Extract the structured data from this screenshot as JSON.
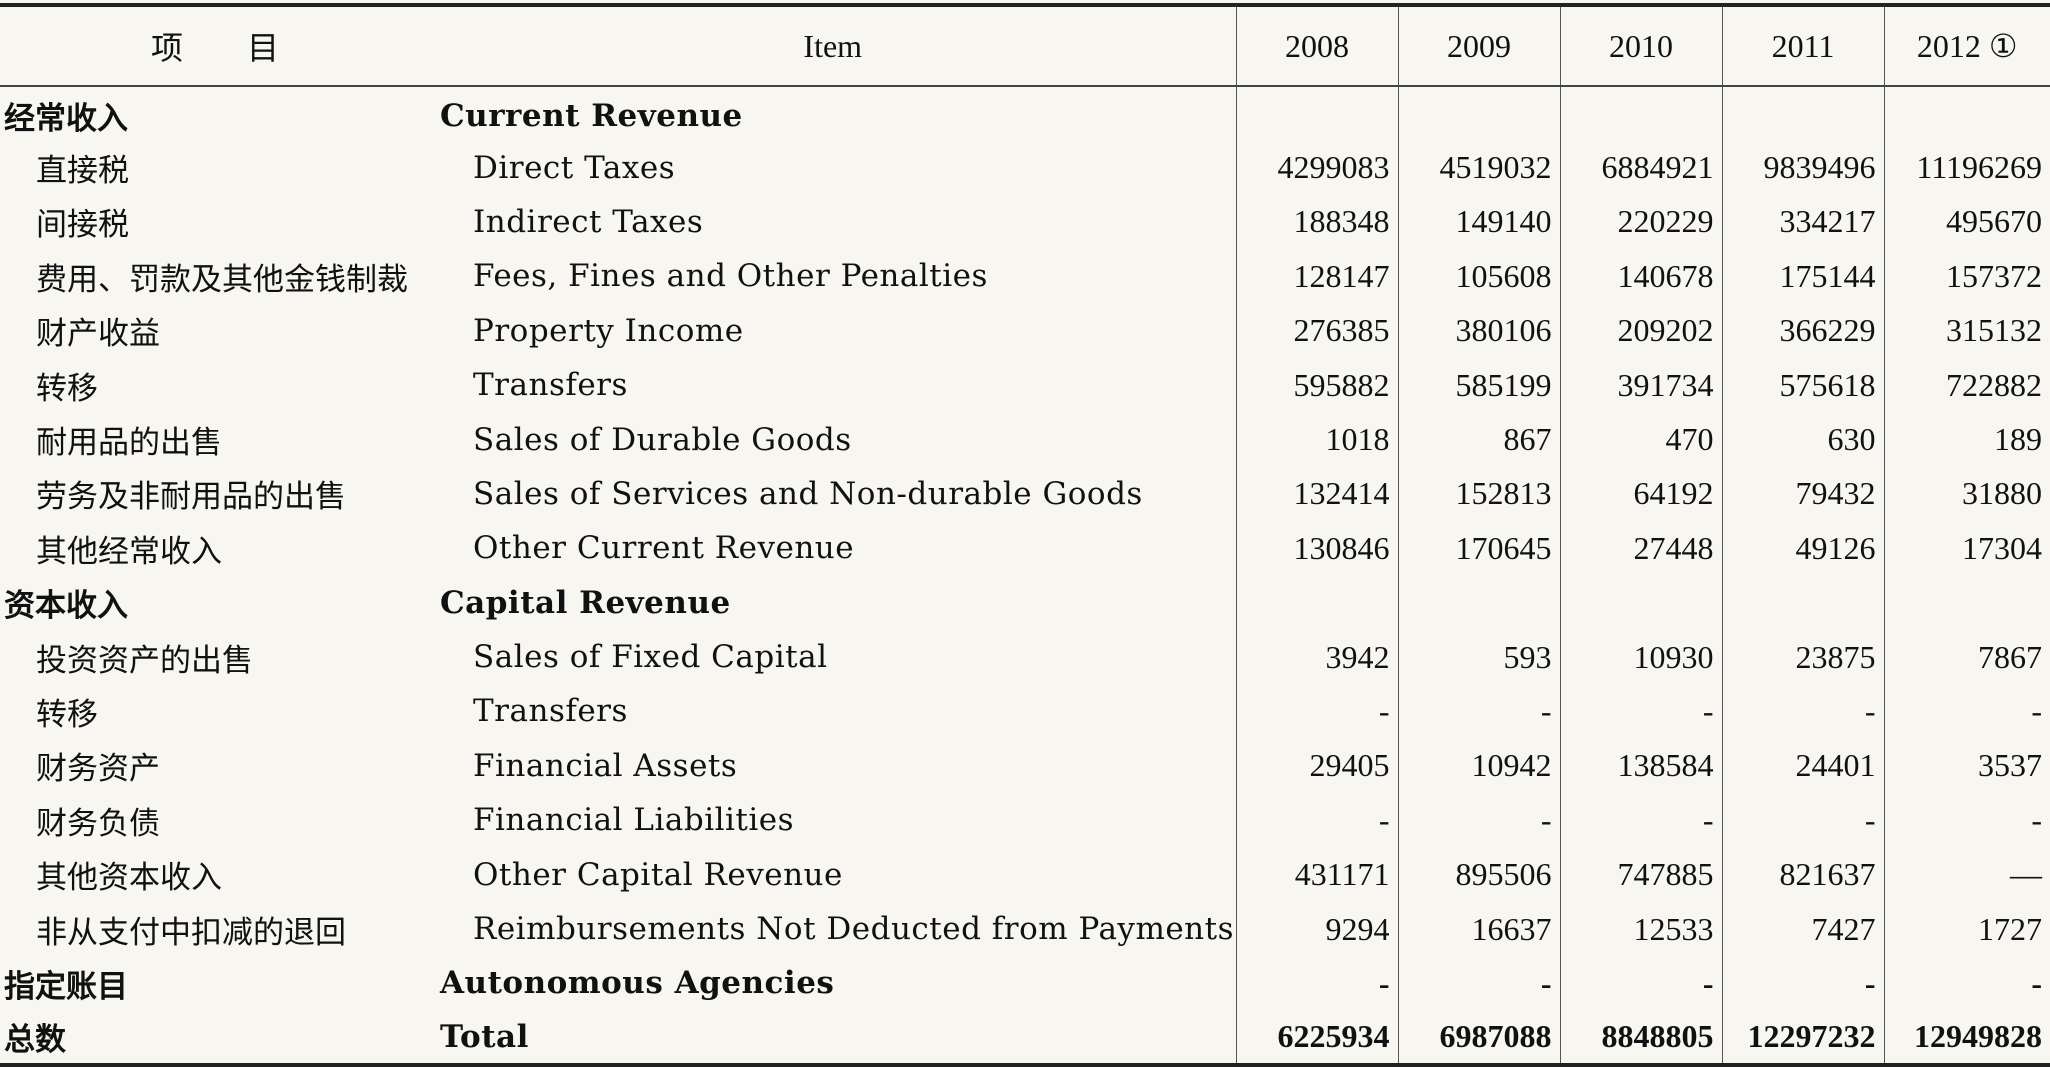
{
  "header": {
    "zh": "项　　目",
    "en": "Item",
    "years": [
      "2008",
      "2009",
      "2010",
      "2011",
      "2012 ①"
    ]
  },
  "rows": [
    {
      "zh": "经常收入",
      "en": "Current Revenue",
      "values": [
        "",
        "",
        "",
        "",
        ""
      ]
    },
    {
      "zh": "直接税",
      "en": "Direct Taxes",
      "values": [
        "4299083",
        "4519032",
        "6884921",
        "9839496",
        "11196269"
      ]
    },
    {
      "zh": "间接税",
      "en": "Indirect Taxes",
      "values": [
        "188348",
        "149140",
        "220229",
        "334217",
        "495670"
      ]
    },
    {
      "zh": "费用、罚款及其他金钱制裁",
      "en": "Fees, Fines and Other Penalties",
      "values": [
        "128147",
        "105608",
        "140678",
        "175144",
        "157372"
      ]
    },
    {
      "zh": "财产收益",
      "en": "Property Income",
      "values": [
        "276385",
        "380106",
        "209202",
        "366229",
        "315132"
      ]
    },
    {
      "zh": "转移",
      "en": "Transfers",
      "values": [
        "595882",
        "585199",
        "391734",
        "575618",
        "722882"
      ]
    },
    {
      "zh": "耐用品的出售",
      "en": "Sales of Durable Goods",
      "values": [
        "1018",
        "867",
        "470",
        "630",
        "189"
      ]
    },
    {
      "zh": "劳务及非耐用品的出售",
      "en": "Sales of Services and Non-durable Goods",
      "values": [
        "132414",
        "152813",
        "64192",
        "79432",
        "31880"
      ]
    },
    {
      "zh": "其他经常收入",
      "en": "Other Current Revenue",
      "values": [
        "130846",
        "170645",
        "27448",
        "49126",
        "17304"
      ]
    },
    {
      "zh": "资本收入",
      "en": "Capital Revenue",
      "values": [
        "",
        "",
        "",
        "",
        ""
      ]
    },
    {
      "zh": "投资资产的出售",
      "en": "Sales of Fixed Capital",
      "values": [
        "3942",
        "593",
        "10930",
        "23875",
        "7867"
      ]
    },
    {
      "zh": "转移",
      "en": "Transfers",
      "values": [
        "-",
        "-",
        "-",
        "-",
        "-"
      ]
    },
    {
      "zh": "财务资产",
      "en": "Financial Assets",
      "values": [
        "29405",
        "10942",
        "138584",
        "24401",
        "3537"
      ]
    },
    {
      "zh": "财务负债",
      "en": "Financial Liabilities",
      "values": [
        "-",
        "-",
        "-",
        "-",
        "-"
      ]
    },
    {
      "zh": "其他资本收入",
      "en": "Other Capital Revenue",
      "values": [
        "431171",
        "895506",
        "747885",
        "821637",
        "—"
      ]
    },
    {
      "zh": "非从支付中扣减的退回",
      "en": "Reimbursements Not Deducted from Payments",
      "values": [
        "9294",
        "16637",
        "12533",
        "7427",
        "1727"
      ]
    },
    {
      "zh": "指定账目",
      "en": "Autonomous Agencies",
      "values": [
        "-",
        "-",
        "-",
        "-",
        "-"
      ]
    },
    {
      "zh": "总数",
      "en": "Total",
      "values": [
        "6225934",
        "6987088",
        "8848805",
        "12297232",
        "12949828"
      ]
    }
  ]
}
